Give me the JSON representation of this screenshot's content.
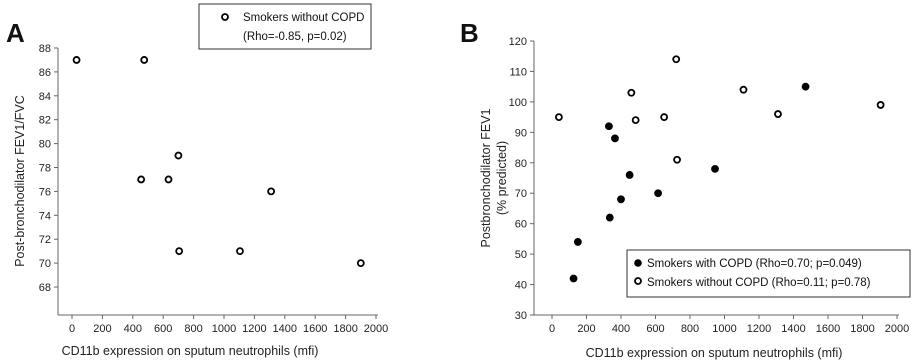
{
  "chart_data": [
    {
      "panel": "A",
      "type": "scatter",
      "xlabel": "CD11b expression on sputum neutrophils (mfi)",
      "ylabel": "Post-bronchodilator FEV1/FVC",
      "xlim": [
        -150,
        2000
      ],
      "ylim": [
        68,
        88
      ],
      "xticks": [
        0,
        200,
        400,
        600,
        800,
        1000,
        1200,
        1400,
        1600,
        1800,
        2000
      ],
      "yticks": [
        68,
        70,
        72,
        74,
        76,
        78,
        80,
        82,
        84,
        86,
        88
      ],
      "legend_placement": "top-right",
      "series": [
        {
          "name": "Smokers without COPD",
          "stat": "(Rho=-0.85, p=0.02)",
          "marker": "open-circle",
          "points": [
            [
              30,
              87
            ],
            [
              475,
              87
            ],
            [
              455,
              77
            ],
            [
              635,
              77
            ],
            [
              700,
              79
            ],
            [
              705,
              71
            ],
            [
              1105,
              71
            ],
            [
              1310,
              76
            ],
            [
              1900,
              70
            ]
          ]
        }
      ]
    },
    {
      "panel": "B",
      "type": "scatter",
      "xlabel": "CD11b expression on sputum neutrophils (mfi)",
      "ylabel_line1": "Postbronchodilator FEV1",
      "ylabel_line2": "(% predicted)",
      "xlim": [
        -150,
        2000
      ],
      "ylim": [
        30,
        120
      ],
      "xticks": [
        0,
        200,
        400,
        600,
        800,
        1000,
        1200,
        1400,
        1600,
        1800,
        2000
      ],
      "yticks": [
        30,
        40,
        50,
        60,
        70,
        80,
        90,
        100,
        110,
        120
      ],
      "legend_placement": "bottom-right",
      "series": [
        {
          "name": "Smokers with COPD (Rho=0.70; p=0.049)",
          "marker": "filled-circle",
          "points": [
            [
              125,
              42
            ],
            [
              150,
              54
            ],
            [
              330,
              92
            ],
            [
              335,
              62
            ],
            [
              365,
              88
            ],
            [
              400,
              68
            ],
            [
              450,
              76
            ],
            [
              615,
              70
            ],
            [
              945,
              78
            ],
            [
              1470,
              105
            ]
          ]
        },
        {
          "name": "Smokers without COPD (Rho=0.11; p=0.78)",
          "marker": "open-circle",
          "points": [
            [
              40,
              95
            ],
            [
              460,
              103
            ],
            [
              485,
              94
            ],
            [
              650,
              95
            ],
            [
              720,
              114
            ],
            [
              725,
              81
            ],
            [
              1110,
              104
            ],
            [
              1310,
              96
            ],
            [
              1905,
              99
            ]
          ]
        }
      ]
    }
  ]
}
